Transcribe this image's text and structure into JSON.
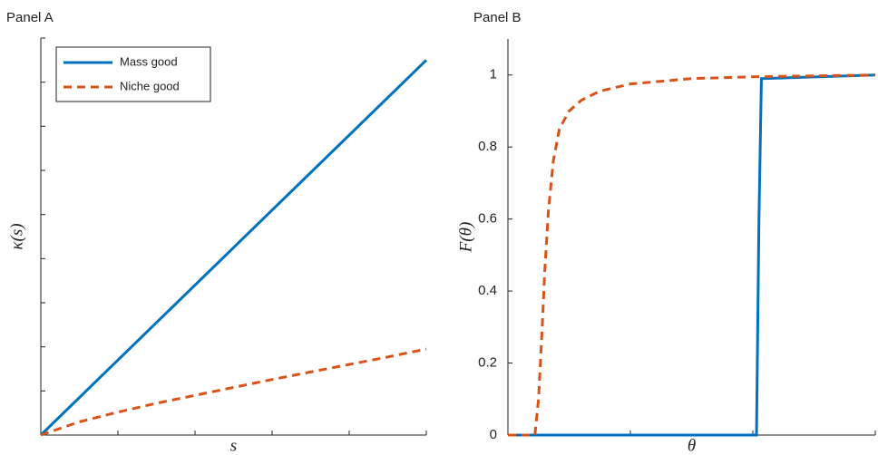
{
  "chart_data": [
    {
      "type": "line",
      "title": "Panel A",
      "xlabel": "s",
      "ylabel": "κ(s)",
      "xlim": [
        0,
        5
      ],
      "xticks": [
        0,
        1,
        2,
        3,
        4,
        5
      ],
      "ylim": [
        0,
        9
      ],
      "yticks": [
        0,
        1,
        2,
        3,
        4,
        5,
        6,
        7,
        8,
        9
      ],
      "tick_labels": false,
      "legend": "upper left",
      "series": [
        {
          "name": "Mass good",
          "color": "#0072bd",
          "style": "solid",
          "x": [
            0,
            5
          ],
          "values": [
            0,
            8.5
          ]
        },
        {
          "name": "Niche good",
          "color": "#d95319",
          "style": "dashed",
          "x": [
            0,
            0.5,
            1,
            1.5,
            2,
            2.5,
            3,
            3.5,
            4,
            4.5,
            5
          ],
          "values": [
            0,
            0.3,
            0.52,
            0.72,
            0.9,
            1.08,
            1.26,
            1.43,
            1.6,
            1.77,
            1.95
          ]
        }
      ]
    },
    {
      "type": "line",
      "title": "Panel B",
      "xlabel": "θ",
      "ylabel": "F(θ)",
      "xlim": [
        0,
        3
      ],
      "xticks": [
        0,
        1,
        2,
        3
      ],
      "ylim": [
        0,
        1.1
      ],
      "yticks": [
        0,
        0.2,
        0.4,
        0.6,
        0.8,
        1
      ],
      "tick_labels": true,
      "series": [
        {
          "name": "Mass good",
          "color": "#0072bd",
          "style": "solid",
          "x": [
            0,
            2.03,
            2.05,
            2.07,
            3
          ],
          "values": [
            0,
            0,
            0.6,
            0.99,
            1
          ]
        },
        {
          "name": "Niche good",
          "color": "#d95319",
          "style": "dashed",
          "x": [
            0,
            0.22,
            0.25,
            0.28,
            0.3,
            0.33,
            0.37,
            0.42,
            0.5,
            0.6,
            0.75,
            1,
            1.5,
            2,
            3
          ],
          "values": [
            0,
            0,
            0.1,
            0.3,
            0.45,
            0.62,
            0.76,
            0.85,
            0.9,
            0.93,
            0.955,
            0.975,
            0.99,
            0.995,
            1
          ]
        }
      ]
    }
  ]
}
